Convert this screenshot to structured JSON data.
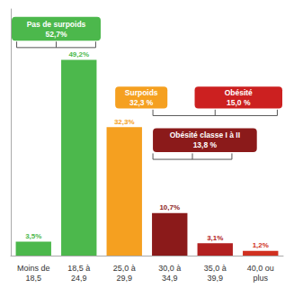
{
  "chart_data": {
    "type": "bar",
    "categories": [
      "Moins de\n18,5",
      "18,5 à\n24,9",
      "25,0 à\n29,9",
      "30,0 à\n34,9",
      "35,0 à\n39,9",
      "40,0 ou\nplus"
    ],
    "values": [
      3.5,
      49.2,
      32.3,
      10.7,
      3.1,
      1.2
    ],
    "value_labels": [
      "3,5%",
      "49,2%",
      "32,3%",
      "10,7%",
      "3,1%",
      "1,2%"
    ],
    "colors": [
      "#4cb84c",
      "#4cb84c",
      "#f5a020",
      "#8b1a1a",
      "#b22020",
      "#d03020"
    ],
    "data_labels": true,
    "ylim": [
      0,
      62
    ],
    "yticks": [],
    "tick_labels": "x",
    "grid": false,
    "annotations": [
      {
        "text": "Pas de surpoids\n52,7%",
        "color": "#4cb84c"
      },
      {
        "text": "Surpoids\n32,3 %",
        "color": "#f5a020"
      },
      {
        "text": "Obésité\n15,0 %",
        "color": "#cc2020"
      },
      {
        "text": "Obésité classe I à II\n13,8 %",
        "color": "#8b1a1a"
      }
    ]
  }
}
